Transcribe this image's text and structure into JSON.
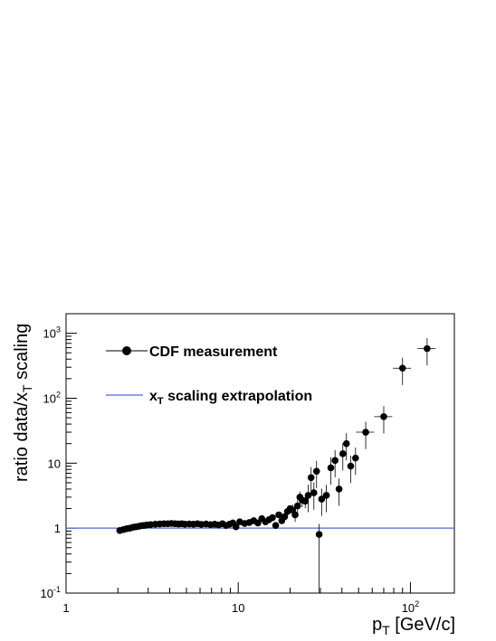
{
  "chart_data": {
    "type": "scatter",
    "xscale": "log",
    "yscale": "log",
    "xlim": [
      1,
      180
    ],
    "ylim": [
      0.1,
      2000
    ],
    "xlabel": "p_T [GeV/c]",
    "ylabel": "ratio data/x_T scaling",
    "xlabel_main": "p",
    "xlabel_sub": "T",
    "xlabel_rest": " [GeV/c]",
    "ylabel_main": "ratio data/x",
    "ylabel_sub": "T",
    "ylabel_rest": " scaling",
    "x_ticks": [
      {
        "value": 1,
        "label": "1"
      },
      {
        "value": 10,
        "label": "10"
      },
      {
        "value": 100,
        "label": "10",
        "exp": "2"
      }
    ],
    "y_ticks": [
      {
        "value": 0.1,
        "label": "10",
        "exp": "-1"
      },
      {
        "value": 1,
        "label": "1"
      },
      {
        "value": 10,
        "label": "10"
      },
      {
        "value": 100,
        "label": "10",
        "exp": "2"
      },
      {
        "value": 1000,
        "label": "10",
        "exp": "3"
      }
    ],
    "legend": {
      "entries": [
        {
          "label": "CDF measurement"
        },
        {
          "label_main": "x",
          "label_sub": "T",
          "label_rest": " scaling extrapolation"
        }
      ]
    },
    "colors": {
      "markers": "#000000",
      "extrapolation": "#4a6cd4"
    },
    "series": [
      {
        "name": "CDF measurement",
        "points": [
          {
            "x": 2.05,
            "y": 0.92
          },
          {
            "x": 2.15,
            "y": 0.95
          },
          {
            "x": 2.25,
            "y": 0.98
          },
          {
            "x": 2.35,
            "y": 1.0
          },
          {
            "x": 2.45,
            "y": 1.03
          },
          {
            "x": 2.55,
            "y": 1.05
          },
          {
            "x": 2.65,
            "y": 1.07
          },
          {
            "x": 2.75,
            "y": 1.09
          },
          {
            "x": 2.85,
            "y": 1.1
          },
          {
            "x": 2.95,
            "y": 1.12
          },
          {
            "x": 3.1,
            "y": 1.13
          },
          {
            "x": 3.3,
            "y": 1.15
          },
          {
            "x": 3.5,
            "y": 1.16
          },
          {
            "x": 3.7,
            "y": 1.17
          },
          {
            "x": 3.9,
            "y": 1.17
          },
          {
            "x": 4.1,
            "y": 1.18
          },
          {
            "x": 4.3,
            "y": 1.17
          },
          {
            "x": 4.5,
            "y": 1.16
          },
          {
            "x": 4.7,
            "y": 1.17
          },
          {
            "x": 4.9,
            "y": 1.15
          },
          {
            "x": 5.2,
            "y": 1.16
          },
          {
            "x": 5.5,
            "y": 1.15
          },
          {
            "x": 5.8,
            "y": 1.17
          },
          {
            "x": 6.1,
            "y": 1.14
          },
          {
            "x": 6.5,
            "y": 1.16
          },
          {
            "x": 6.9,
            "y": 1.13
          },
          {
            "x": 7.3,
            "y": 1.15
          },
          {
            "x": 7.7,
            "y": 1.12
          },
          {
            "x": 8.1,
            "y": 1.17
          },
          {
            "x": 8.5,
            "y": 1.1
          },
          {
            "x": 8.9,
            "y": 1.15
          },
          {
            "x": 9.3,
            "y": 1.2
          },
          {
            "x": 9.7,
            "y": 1.05
          },
          {
            "x": 10.2,
            "y": 1.25
          },
          {
            "x": 10.9,
            "y": 1.18
          },
          {
            "x": 11.6,
            "y": 1.22
          },
          {
            "x": 12.3,
            "y": 1.3
          },
          {
            "x": 13.0,
            "y": 1.2
          },
          {
            "x": 13.7,
            "y": 1.4
          },
          {
            "x": 14.4,
            "y": 1.25
          },
          {
            "x": 15.1,
            "y": 1.35
          },
          {
            "x": 15.8,
            "y": 1.45
          },
          {
            "x": 16.5,
            "y": 1.1
          },
          {
            "x": 17.2,
            "y": 1.6
          },
          {
            "x": 17.9,
            "y": 1.3
          },
          {
            "x": 18.6,
            "y": 1.5
          },
          {
            "x": 19.3,
            "y": 1.8
          },
          {
            "x": 20.0,
            "y": 2.0
          },
          {
            "x": 20.7,
            "y": 1.9
          },
          {
            "x": 21.4,
            "y": 1.6
          },
          {
            "x": 22.1,
            "y": 2.2
          },
          {
            "x": 22.8,
            "y": 3.0
          },
          {
            "x": 23.5,
            "y": 2.7
          },
          {
            "x": 24.5,
            "y": 2.6
          },
          {
            "x": 25.5,
            "y": 3.2
          },
          {
            "x": 26.5,
            "y": 6.0
          },
          {
            "x": 27.5,
            "y": 3.5
          },
          {
            "x": 28.5,
            "y": 7.5
          },
          {
            "x": 29.5,
            "y": 0.8
          },
          {
            "x": 30.5,
            "y": 2.8
          },
          {
            "x": 32.5,
            "y": 3.2
          },
          {
            "x": 34.5,
            "y": 8.5
          },
          {
            "x": 36.5,
            "y": 11.0
          },
          {
            "x": 38.5,
            "y": 4.0
          },
          {
            "x": 40.5,
            "y": 14.0
          },
          {
            "x": 42.5,
            "y": 20.0
          },
          {
            "x": 45.0,
            "y": 9.0
          },
          {
            "x": 48.0,
            "y": 12.0
          },
          {
            "x": 55.0,
            "y": 30.0
          },
          {
            "x": 70.0,
            "y": 52.0
          },
          {
            "x": 90.0,
            "y": 290.0
          },
          {
            "x": 125.0,
            "y": 580.0
          }
        ]
      },
      {
        "name": "x_T scaling extrapolation",
        "type": "line",
        "x": [
          1,
          180
        ],
        "y": [
          1,
          1
        ]
      }
    ]
  }
}
